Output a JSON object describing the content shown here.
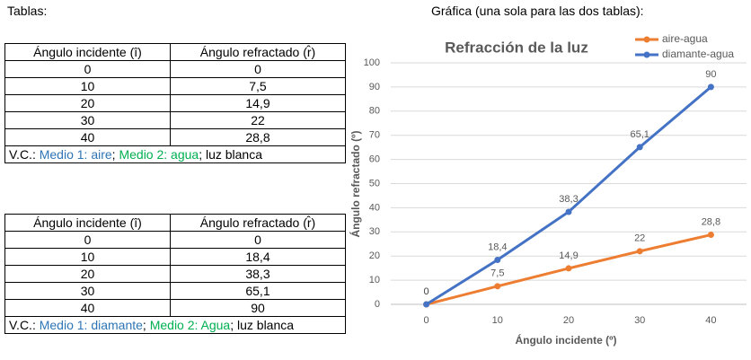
{
  "labels": {
    "tables": "Tablas:",
    "chart": "Gráfica (una sola para las dos tablas):"
  },
  "tables": [
    {
      "header": [
        "Ángulo incidente (î)",
        "Ángulo refractado (r̂)"
      ],
      "rows": [
        [
          "0",
          "0"
        ],
        [
          "10",
          "7,5"
        ],
        [
          "20",
          "14,9"
        ],
        [
          "30",
          "22"
        ],
        [
          "40",
          "28,8"
        ]
      ],
      "footer": [
        "V.C.: ",
        "Medio 1: aire",
        "; ",
        "Medio 2: agua",
        "; luz blanca"
      ]
    },
    {
      "header": [
        "Ángulo incidente (î)",
        "Ángulo refractado (r̂)"
      ],
      "rows": [
        [
          "0",
          "0"
        ],
        [
          "10",
          "18,4"
        ],
        [
          "20",
          "38,3"
        ],
        [
          "30",
          "65,1"
        ],
        [
          "40",
          "90"
        ]
      ],
      "footer": [
        "V.C.: ",
        "Medio 1: diamante",
        "; ",
        "Medio 2: Agua",
        "; luz blanca"
      ]
    }
  ],
  "chart_data": {
    "type": "line",
    "title": "Refracción de la luz",
    "x_label": "Ángulo incidente (º)",
    "y_label": "Ángulo refractado (º)",
    "categories": [
      0,
      10,
      20,
      30,
      40
    ],
    "series": [
      {
        "name": "aire-agua",
        "color": "#ED7D31",
        "values": [
          0,
          7.5,
          14.9,
          22,
          28.8
        ],
        "value_labels": [
          "0",
          "7,5",
          "14,9",
          "22",
          "28,8"
        ]
      },
      {
        "name": "diamante-agua",
        "color": "#4472C4",
        "values": [
          0,
          18.4,
          38.3,
          65.1,
          90
        ],
        "value_labels": [
          "0",
          "18,4",
          "38,3",
          "65,1",
          "90"
        ]
      }
    ],
    "ylim": [
      0,
      100
    ],
    "yticks": [
      0,
      10,
      20,
      30,
      40,
      50,
      60,
      70,
      80,
      90,
      100
    ],
    "grid": true,
    "legend": "top-right"
  }
}
